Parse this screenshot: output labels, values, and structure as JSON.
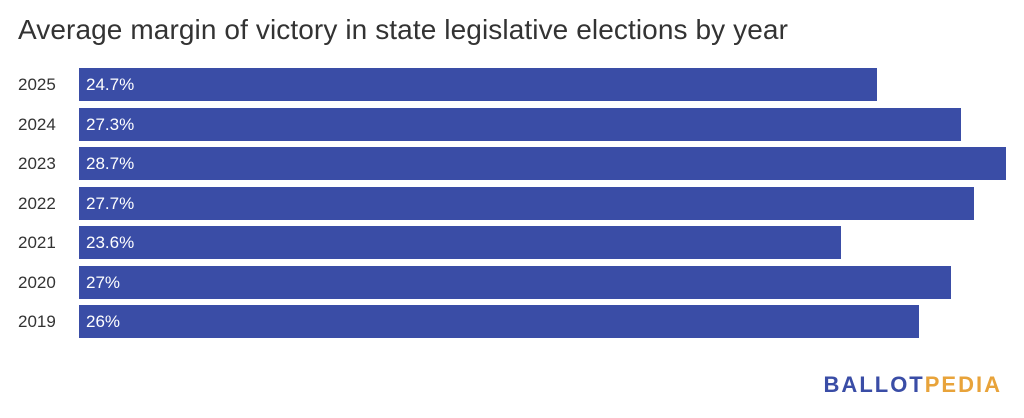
{
  "chart_data": {
    "type": "bar",
    "orientation": "horizontal",
    "title": "Average margin of victory in state legislative elections by year",
    "xlabel": "",
    "ylabel": "",
    "categories": [
      "2025",
      "2024",
      "2023",
      "2022",
      "2021",
      "2020",
      "2019"
    ],
    "values": [
      24.7,
      27.3,
      28.7,
      27.7,
      23.6,
      27,
      26
    ],
    "value_labels": [
      "24.7%",
      "27.3%",
      "28.7%",
      "27.7%",
      "23.6%",
      "27%",
      "26%"
    ],
    "xlim": [
      0,
      28.7
    ],
    "grid": false,
    "legend": "none",
    "bar_color": "#3a4da6"
  },
  "logo": {
    "part1": "BALLOT",
    "part2": "PEDIA",
    "color1": "#3a4da6",
    "color2": "#e8a33a"
  }
}
